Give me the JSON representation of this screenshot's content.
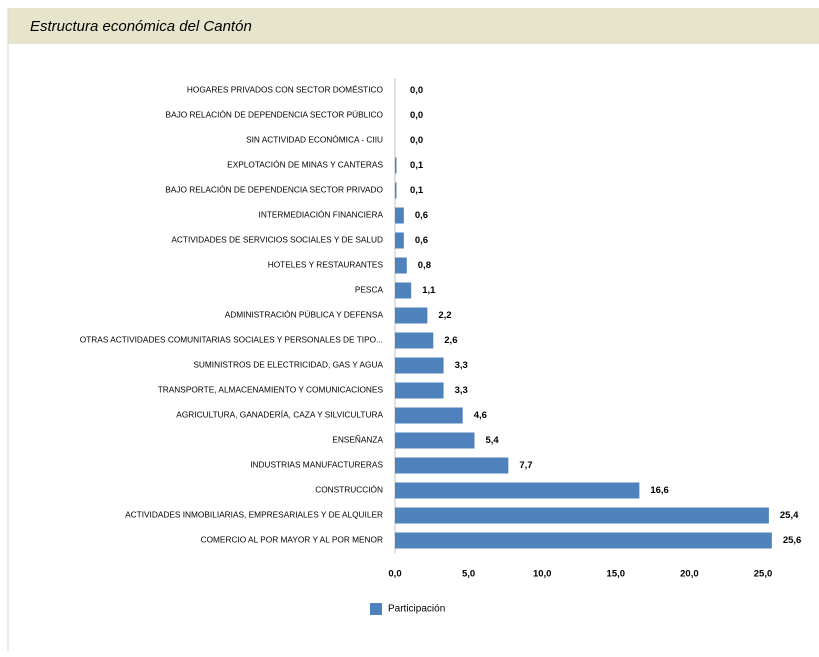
{
  "chart_data": {
    "type": "bar",
    "orientation": "horizontal",
    "title": "Estructura económica del Cantón",
    "categories": [
      "HOGARES PRIVADOS CON SECTOR DOMÉSTICO",
      "BAJO RELACIÓN DE DEPENDENCIA SECTOR PÚBLICO",
      "SIN ACTIVIDAD ECONÓMICA - CIIU",
      "EXPLOTACIÓN DE MINAS Y CANTERAS",
      "BAJO RELACIÓN DE DEPENDENCIA SECTOR PRIVADO",
      "INTERMEDIACIÓN FINANCIERA",
      "ACTIVIDADES DE SERVICIOS SOCIALES Y DE SALUD",
      "HOTELES Y RESTAURANTES",
      "PESCA",
      "ADMINISTRACIÓN PÚBLICA Y DEFENSA",
      "OTRAS ACTIVIDADES COMUNITARIAS SOCIALES Y PERSONALES DE TIPO...",
      "SUMINISTROS DE ELECTRICIDAD, GAS Y AGUA",
      "TRANSPORTE, ALMACENAMIENTO Y COMUNICACIONES",
      "AGRICULTURA, GANADERÍA, CAZA Y SILVICULTURA",
      "ENSEÑANZA",
      "INDUSTRIAS MANUFACTURERAS",
      "CONSTRUCCIÓN",
      "ACTIVIDADES INMOBILIARIAS, EMPRESARIALES Y DE ALQUILER",
      "COMERCIO AL POR MAYOR Y AL POR MENOR"
    ],
    "series": [
      {
        "name": "Participación",
        "color": "#4f81bd",
        "values": [
          0.0,
          0.0,
          0.0,
          0.1,
          0.1,
          0.6,
          0.6,
          0.8,
          1.1,
          2.2,
          2.6,
          3.3,
          3.3,
          4.6,
          5.4,
          7.7,
          16.6,
          25.4,
          25.6
        ],
        "value_labels": [
          "0,0",
          "0,0",
          "0,0",
          "0,1",
          "0,1",
          "0,6",
          "0,6",
          "0,8",
          "1,1",
          "2,2",
          "2,6",
          "3,3",
          "3,3",
          "4,6",
          "5,4",
          "7,7",
          "16,6",
          "25,4",
          "25,6"
        ]
      }
    ],
    "xlim": [
      0,
      28
    ],
    "xticks": [
      {
        "value": 0,
        "label": "0,0"
      },
      {
        "value": 5,
        "label": "5,0"
      },
      {
        "value": 10,
        "label": "10,0"
      },
      {
        "value": 15,
        "label": "15,0"
      },
      {
        "value": 20,
        "label": "20,0"
      },
      {
        "value": 25,
        "label": "25,0"
      }
    ],
    "legend": "bottom"
  }
}
